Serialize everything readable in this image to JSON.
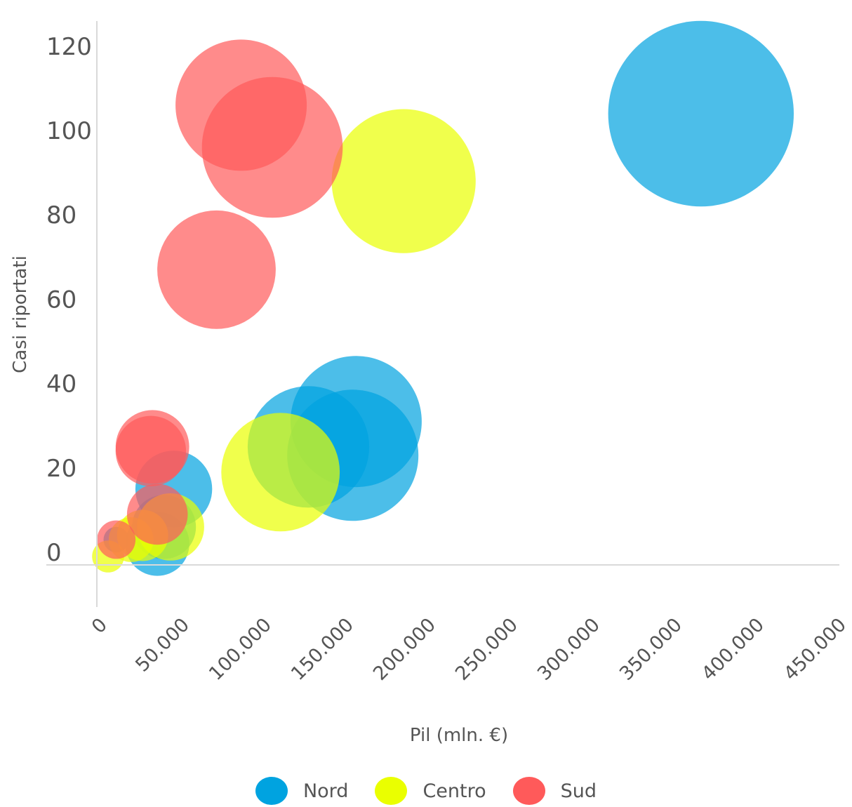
{
  "chart_data": {
    "type": "scatter",
    "variant": "bubble",
    "xlabel": "Pil (mln. €)",
    "ylabel": "Casi riportati",
    "xlim": [
      0,
      450000
    ],
    "ylim": [
      0,
      120
    ],
    "x_ticks": [
      "0",
      "50.000",
      "100.000",
      "150.000",
      "200.000",
      "250.000",
      "300.000",
      "350.000",
      "400.000",
      "450.000"
    ],
    "y_ticks": [
      "0",
      "20",
      "40",
      "60",
      "80",
      "100",
      "120"
    ],
    "grid": false,
    "legend_position": "bottom",
    "series": [
      {
        "name": "Nord",
        "color": "#00a3e0",
        "points": [
          {
            "x": 367000,
            "y": 104,
            "size": 58
          },
          {
            "x": 157000,
            "y": 31,
            "size": 41
          },
          {
            "x": 155000,
            "y": 23,
            "size": 41
          },
          {
            "x": 128000,
            "y": 25,
            "size": 38
          },
          {
            "x": 46000,
            "y": 15,
            "size": 24
          },
          {
            "x": 40000,
            "y": 6,
            "size": 20
          },
          {
            "x": 36000,
            "y": 2,
            "size": 20
          },
          {
            "x": 11000,
            "y": 3,
            "size": 8
          }
        ]
      },
      {
        "name": "Centro",
        "color": "#eaff00",
        "points": [
          {
            "x": 186000,
            "y": 88,
            "size": 45
          },
          {
            "x": 111000,
            "y": 19,
            "size": 37
          },
          {
            "x": 44000,
            "y": 6,
            "size": 21
          },
          {
            "x": 27000,
            "y": 4,
            "size": 16
          },
          {
            "x": 20000,
            "y": 3,
            "size": 14
          },
          {
            "x": 6000,
            "y": -1,
            "size": 10
          }
        ]
      },
      {
        "name": "Sud",
        "color": "#ff5a5a",
        "points": [
          {
            "x": 87000,
            "y": 106,
            "size": 41
          },
          {
            "x": 106000,
            "y": 96,
            "size": 44
          },
          {
            "x": 72000,
            "y": 67,
            "size": 37
          },
          {
            "x": 33000,
            "y": 25,
            "size": 23
          },
          {
            "x": 32000,
            "y": 24,
            "size": 22
          },
          {
            "x": 36000,
            "y": 9,
            "size": 19
          },
          {
            "x": 11000,
            "y": 3,
            "size": 12
          }
        ]
      }
    ]
  }
}
